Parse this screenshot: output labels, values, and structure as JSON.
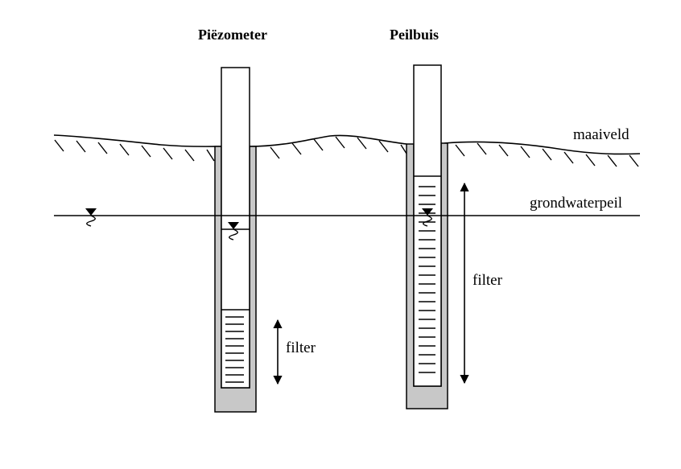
{
  "titles": {
    "piezometer": "Piëzometer",
    "peilbuis": "Peilbuis"
  },
  "labels": {
    "ground_surface": "maaiveld",
    "groundwater_level": "grondwaterpeil",
    "filter_piezometer": "filter",
    "filter_peilbuis": "filter"
  },
  "colors": {
    "line": "#000000",
    "casing_fill": "#c8c8c8",
    "pipe_fill": "#ffffff"
  }
}
